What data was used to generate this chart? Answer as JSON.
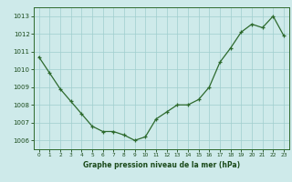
{
  "x": [
    0,
    1,
    2,
    3,
    4,
    5,
    6,
    7,
    8,
    9,
    10,
    11,
    12,
    13,
    14,
    15,
    16,
    17,
    18,
    19,
    20,
    21,
    22,
    23
  ],
  "y": [
    1010.7,
    1009.8,
    1008.9,
    1008.2,
    1007.5,
    1006.8,
    1006.5,
    1006.5,
    1006.3,
    1006.0,
    1006.2,
    1007.2,
    1007.6,
    1008.0,
    1008.0,
    1008.3,
    1009.0,
    1010.4,
    1011.2,
    1012.1,
    1012.55,
    1012.35,
    1013.0,
    1011.9
  ],
  "xlim": [
    -0.5,
    23.5
  ],
  "ylim": [
    1005.5,
    1013.5
  ],
  "yticks": [
    1006,
    1007,
    1008,
    1009,
    1010,
    1011,
    1012,
    1013
  ],
  "xticks": [
    0,
    1,
    2,
    3,
    4,
    5,
    6,
    7,
    8,
    9,
    10,
    11,
    12,
    13,
    14,
    15,
    16,
    17,
    18,
    19,
    20,
    21,
    22,
    23
  ],
  "line_color": "#2d6a2d",
  "marker_color": "#2d6a2d",
  "bg_color": "#ceeaea",
  "grid_color": "#a0cece",
  "xlabel": "Graphe pression niveau de la mer (hPa)",
  "xlabel_color": "#1a4a1a",
  "tick_color": "#1a4a1a",
  "axis_color": "#2d6a2d"
}
